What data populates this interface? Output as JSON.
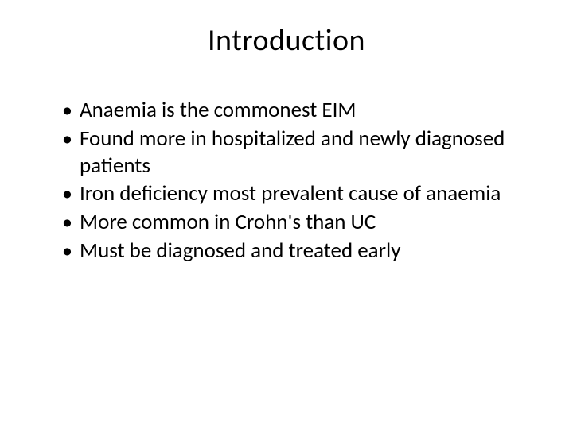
{
  "slide": {
    "title": "Introduction",
    "bullets": [
      "Anaemia is the commonest EIM",
      "Found more in hospitalized and newly diagnosed patients",
      "Iron deficiency most prevalent cause of anaemia",
      "More common in Crohn's than UC",
      "Must be diagnosed and treated early"
    ],
    "title_fontsize": 38,
    "body_fontsize": 27,
    "text_color": "#000000",
    "background_color": "#ffffff"
  }
}
